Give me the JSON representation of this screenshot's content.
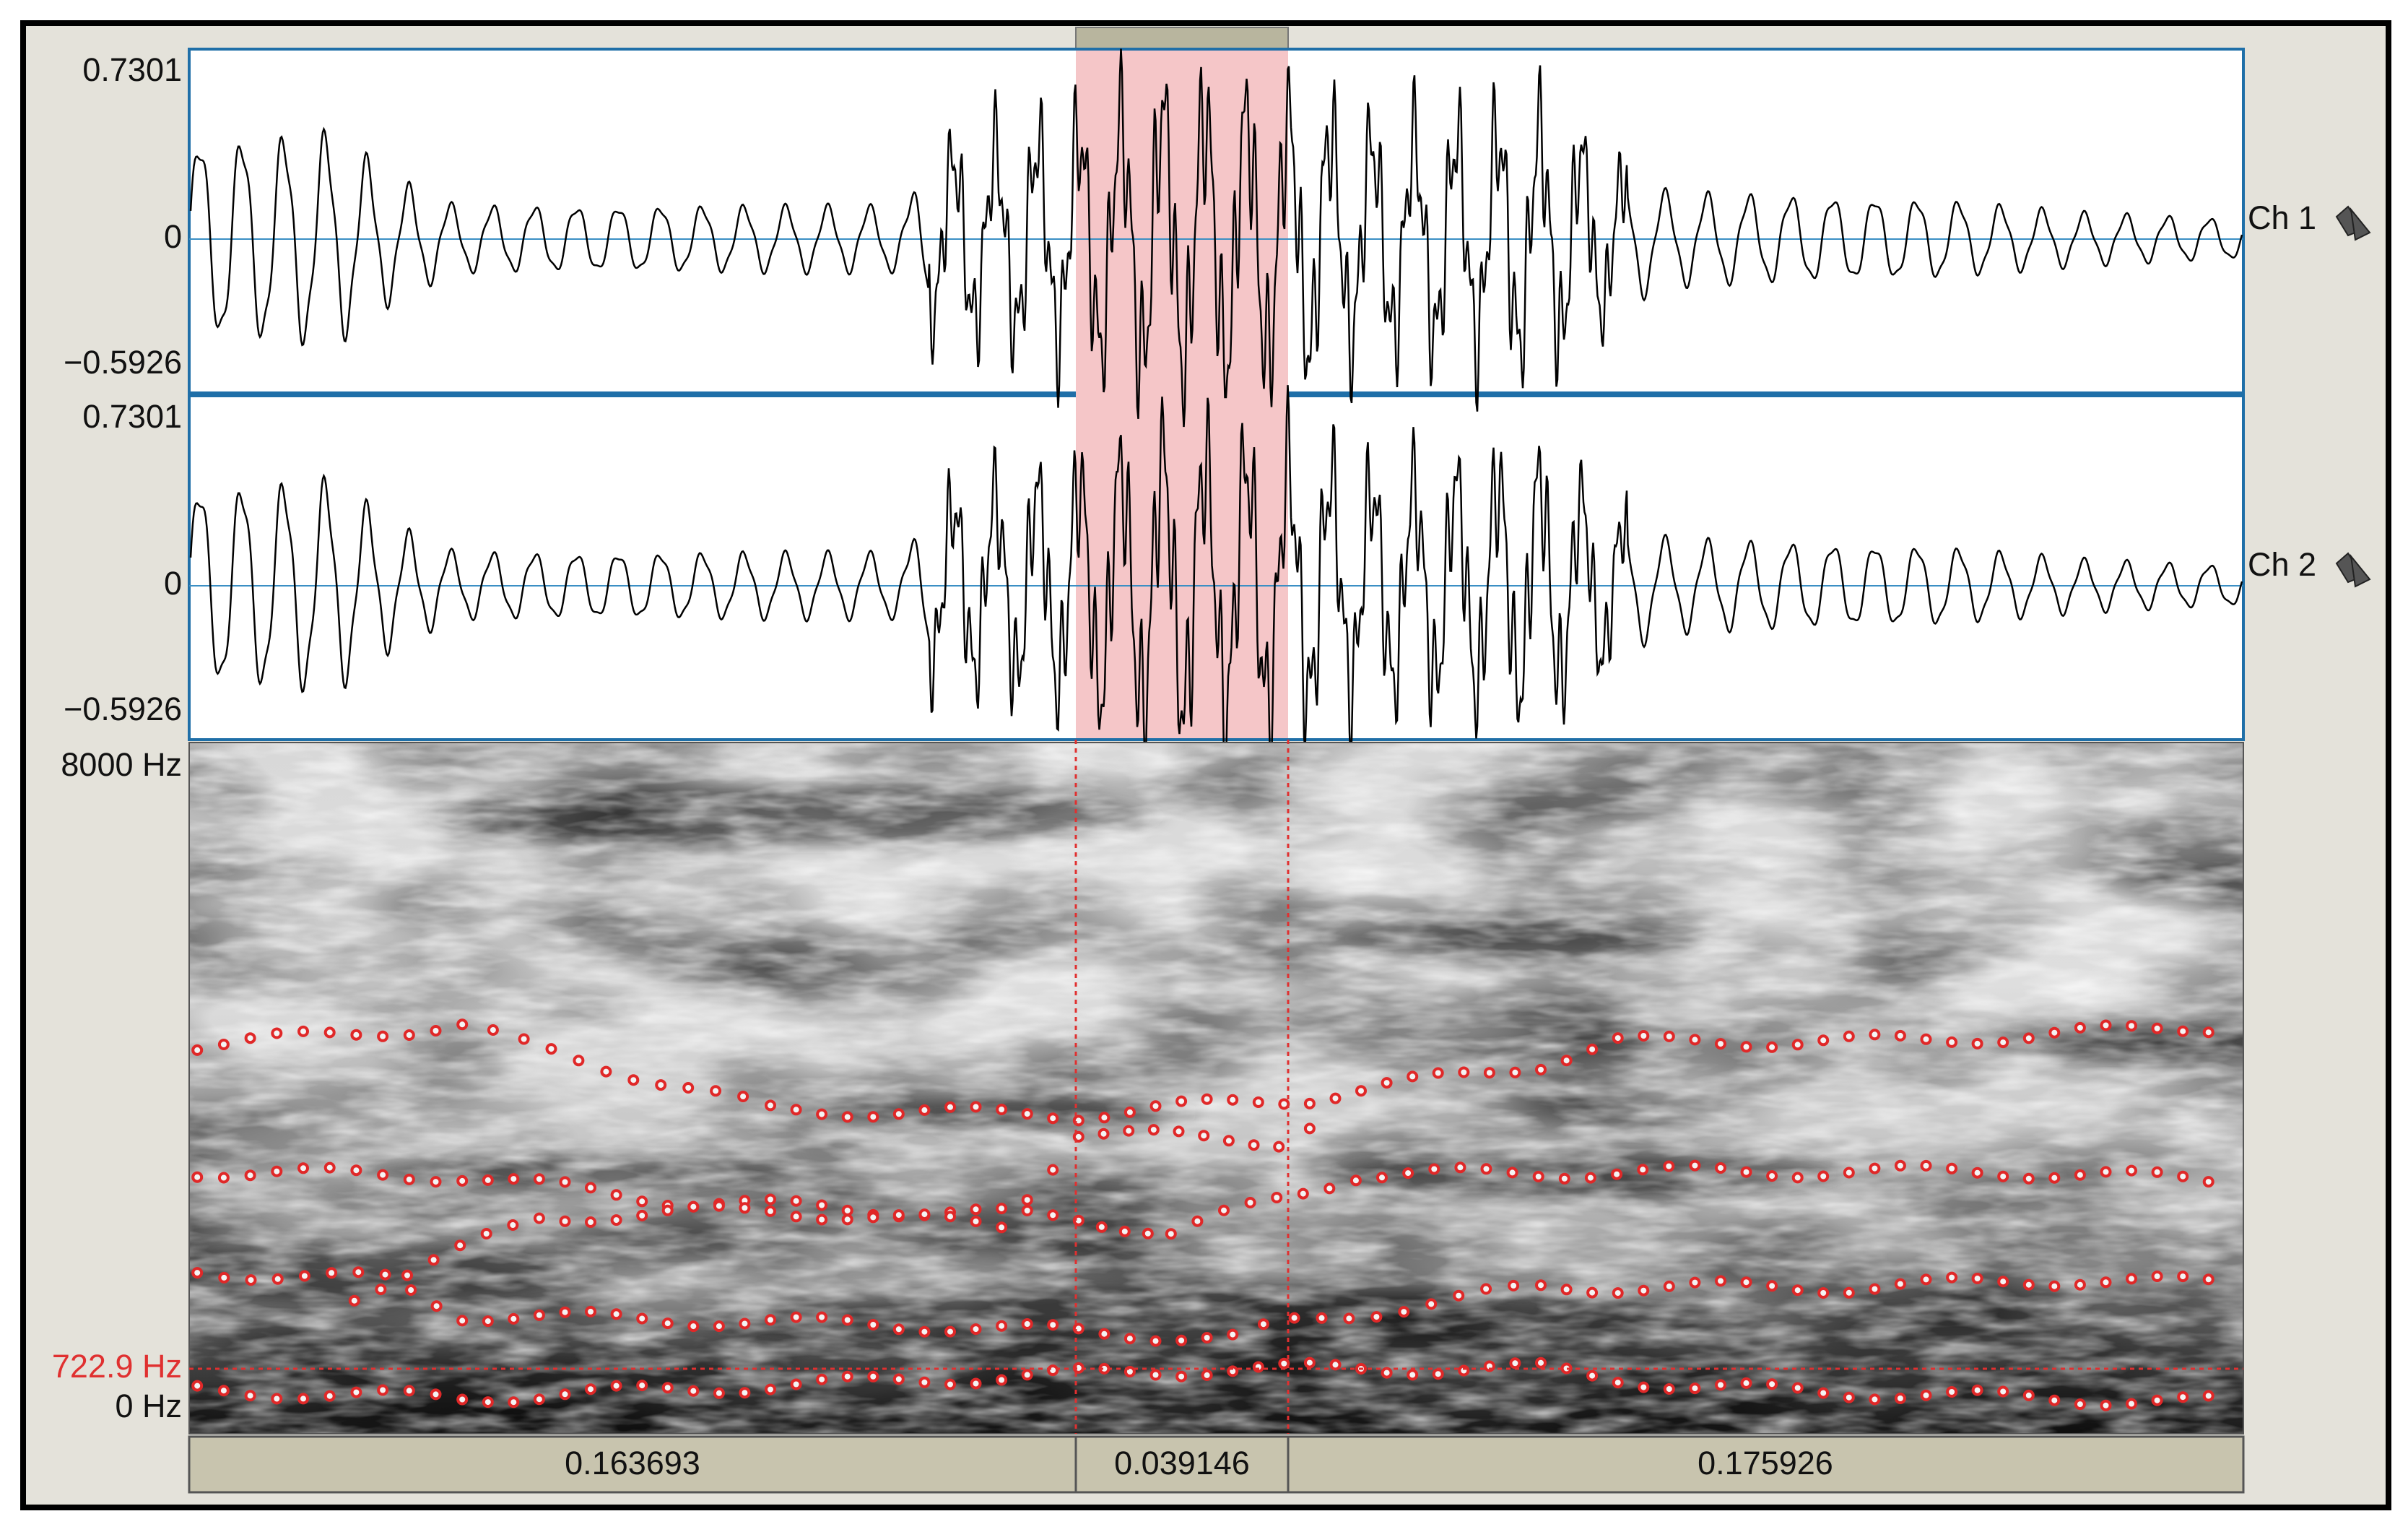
{
  "channels": [
    {
      "max": "0.7301",
      "zero": "0",
      "min": "−0.5926",
      "label": "Ch 1"
    },
    {
      "max": "0.7301",
      "zero": "0",
      "min": "−0.5926",
      "label": "Ch 2"
    }
  ],
  "spectrogram": {
    "max": "8000 Hz",
    "cursor": "722.9 Hz",
    "min": "0 Hz"
  },
  "durations": [
    "0.163693",
    "0.039146",
    "0.175926"
  ]
}
